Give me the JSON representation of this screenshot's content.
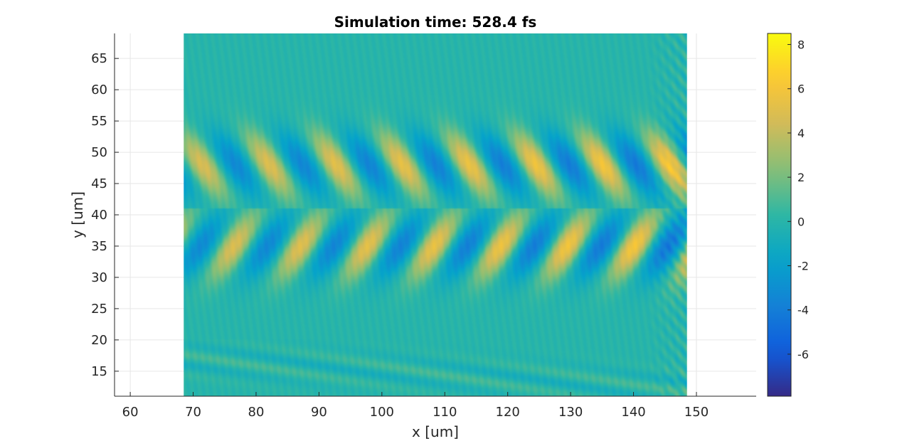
{
  "chart_data": {
    "type": "heatmap",
    "title": "Simulation time: 528.4 fs",
    "xlabel": "x [um]",
    "ylabel": "y [um]",
    "xlim": [
      57.5,
      159.5
    ],
    "ylim": [
      11,
      69
    ],
    "xticks": [
      60,
      70,
      80,
      90,
      100,
      110,
      120,
      130,
      140,
      150
    ],
    "yticks": [
      15,
      20,
      25,
      30,
      35,
      40,
      45,
      50,
      55,
      60,
      65
    ],
    "grid": true,
    "data_extent": {
      "x": [
        68.5,
        148.5
      ],
      "y": [
        11,
        69
      ]
    },
    "colorbar": {
      "colormap": "parula",
      "range": [
        -7.9,
        8.5
      ],
      "ticks": [
        -6,
        -4,
        -2,
        0,
        2,
        4,
        6,
        8
      ],
      "colors": [
        "#352a87",
        "#0f5cdd",
        "#1481d6",
        "#06a4ca",
        "#2eb7a4",
        "#87bf77",
        "#d1bb59",
        "#fec832",
        "#f9fb0e"
      ]
    },
    "field": {
      "wavelength_x": 10.6,
      "upper_lobe_center_y": 48.0,
      "lower_lobe_center_y": 35.0,
      "split_y": 41.0,
      "positive_peaks_upper_x": [
        71.5,
        82.0,
        92.5,
        103.0,
        113.5,
        124.0,
        134.5,
        146.0
      ],
      "positive_peaks_lower_x": [
        76.5,
        87.0,
        97.5,
        108.0,
        118.5,
        129.0,
        140.0
      ],
      "amplitude_max": 6.2,
      "amplitude_min": -5.0
    }
  }
}
